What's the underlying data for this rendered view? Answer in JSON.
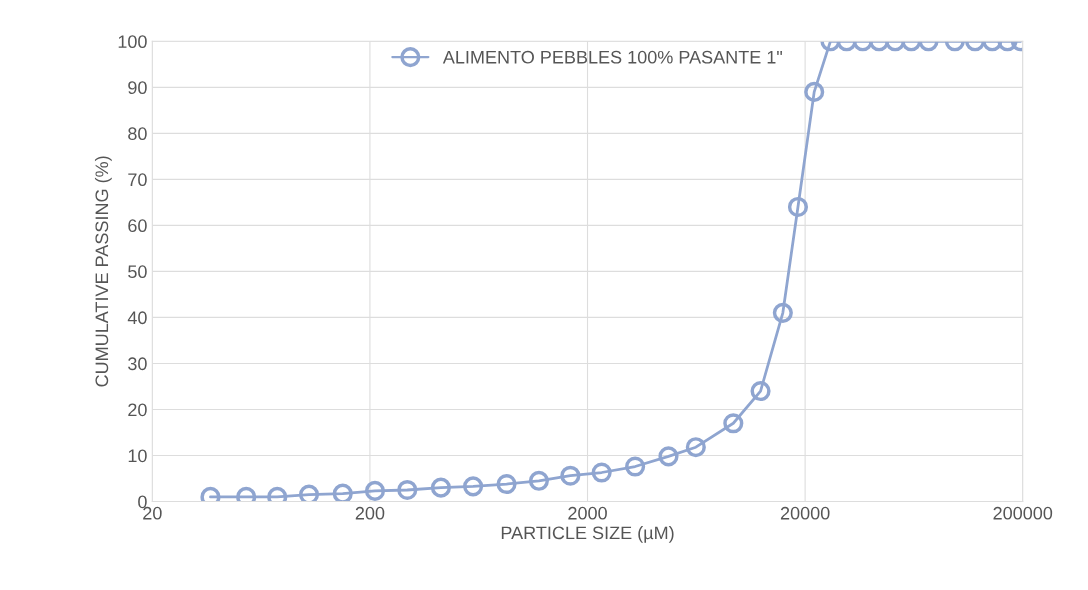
{
  "chart_data": {
    "type": "line",
    "xlabel": "PARTICLE SIZE (µM)",
    "ylabel": "CUMULATIVE PASSING (%)",
    "log": "x",
    "xlim": [
      20,
      200000
    ],
    "xticks": [
      20,
      200,
      2000,
      20000,
      200000
    ],
    "ylim": [
      0,
      100
    ],
    "yticks": [
      0,
      10,
      20,
      30,
      40,
      50,
      60,
      70,
      80,
      90,
      100
    ],
    "grid": true,
    "legend": "top",
    "marker": "circle",
    "line_style": "solid",
    "series": [
      {
        "name": "ALIMENTO PEBBLES 100% PASANTE 1\"",
        "color": "#8fa5d0",
        "x": [
          37,
          54,
          75,
          105,
          150,
          211,
          297,
          424,
          596,
          849,
          1196,
          1668,
          2323,
          3310,
          4711,
          6292,
          9354,
          12480,
          15800,
          18540,
          22020,
          26140,
          31040,
          36820,
          43740,
          51880,
          61520,
          73800,
          97540,
          120800,
          144900,
          170200,
          195900
        ],
        "values": [
          1,
          1,
          1,
          1.5,
          1.7,
          2.3,
          2.5,
          3,
          3.3,
          3.8,
          4.5,
          5.6,
          6.3,
          7.6,
          9.8,
          11.8,
          17,
          24,
          41,
          64,
          89,
          100,
          100,
          100,
          100,
          100,
          100,
          100,
          100,
          100,
          100,
          100,
          100
        ]
      }
    ]
  }
}
